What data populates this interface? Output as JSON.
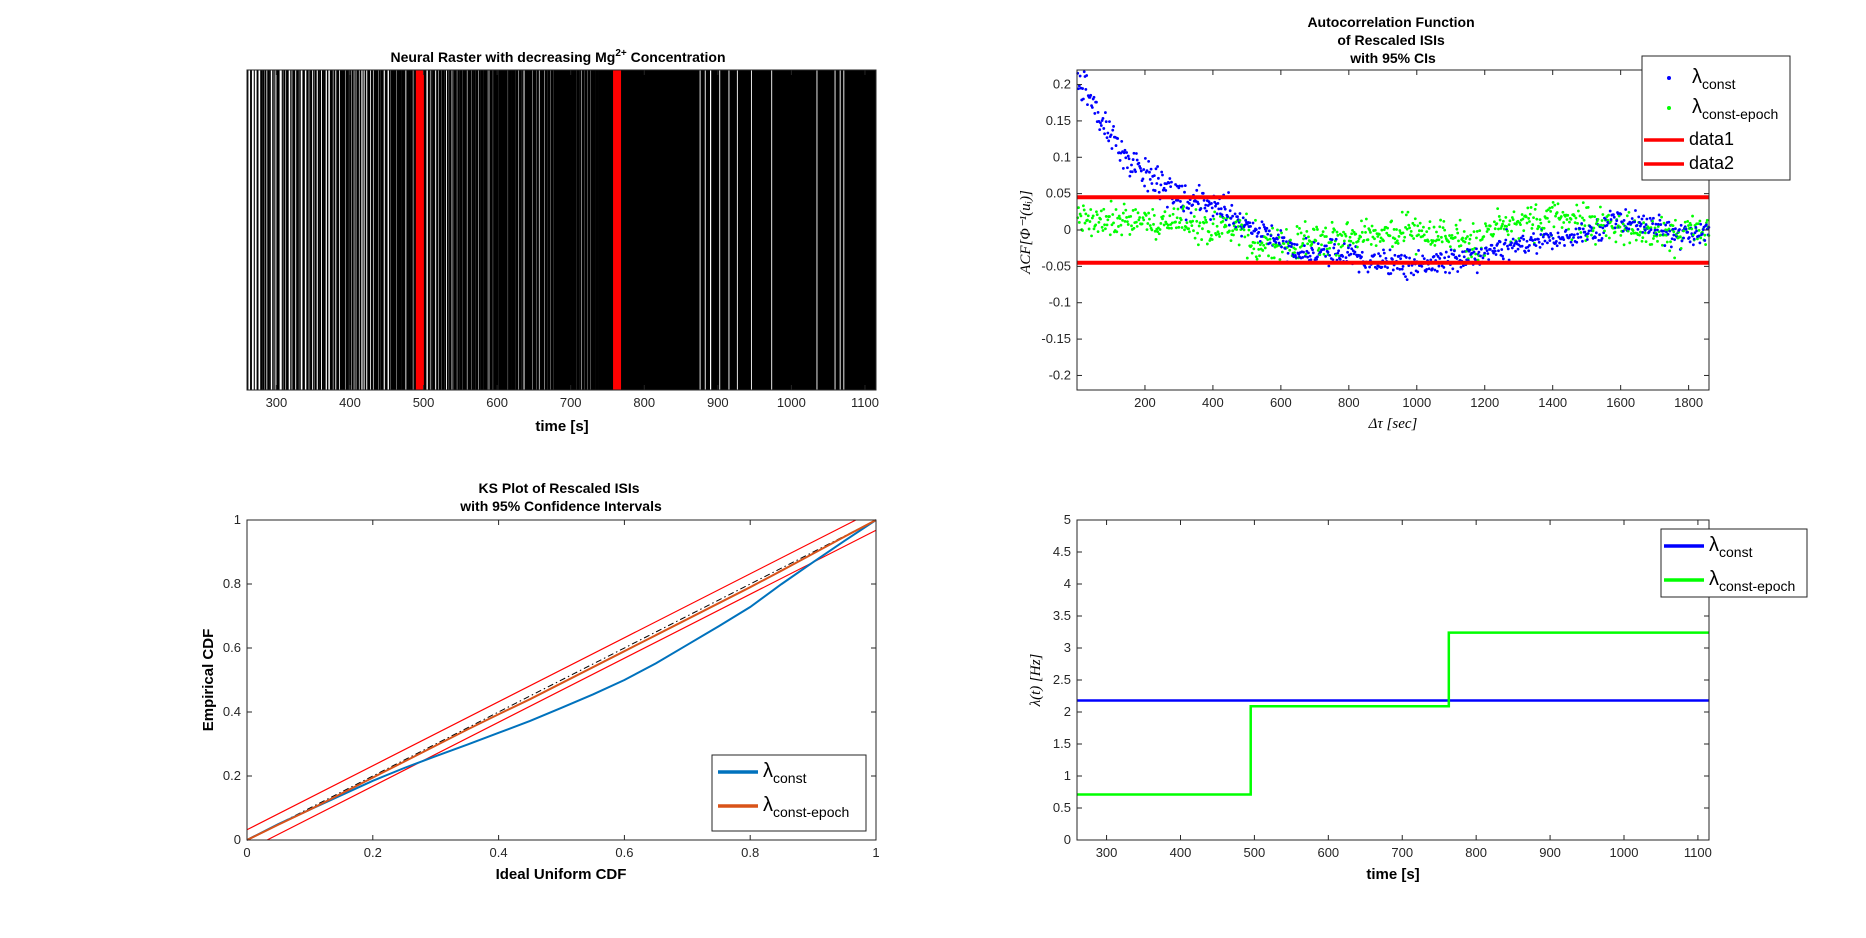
{
  "chart_data": [
    {
      "type": "raster",
      "title": "Neural Raster with decreasing Mg",
      "title_sup": "2+",
      "title_suffix": " Concentration",
      "xlabel": "time [s]",
      "xlim": [
        260,
        1115
      ],
      "xticks": [
        300,
        400,
        500,
        600,
        700,
        800,
        900,
        1000,
        1100
      ],
      "dense_region_start": 770,
      "epoch_boundaries": [
        495,
        763
      ],
      "epoch_color": "#ff0000",
      "spike_color": "#000000"
    },
    {
      "type": "scatter",
      "title_lines": [
        "Autocorrelation Function",
        "of Rescaled ISIs",
        "with 95% CIs"
      ],
      "xlabel": "Δτ [sec]",
      "ylabel": "ACF[Φ⁻¹(uᵢ)]",
      "xlim": [
        0,
        1860
      ],
      "ylim": [
        -0.22,
        0.22
      ],
      "xticks": [
        200,
        400,
        600,
        800,
        1000,
        1200,
        1400,
        1600,
        1800
      ],
      "yticks": [
        -0.2,
        -0.15,
        -0.1,
        -0.05,
        0,
        0.05,
        0.1,
        0.15,
        0.2
      ],
      "confidence_bounds": [
        0.045,
        -0.045
      ],
      "series": [
        {
          "name": "λ",
          "sub": "const",
          "color": "#0000ff",
          "kind": "scatter"
        },
        {
          "name": "λ",
          "sub": "const-epoch",
          "color": "#00ff00",
          "kind": "scatter"
        },
        {
          "name": "data1",
          "color": "#ff0000",
          "kind": "line"
        },
        {
          "name": "data2",
          "color": "#ff0000",
          "kind": "line"
        }
      ]
    },
    {
      "type": "line",
      "title_lines": [
        "KS Plot of Rescaled ISIs",
        "with 95% Confidence Intervals"
      ],
      "xlabel": "Ideal Uniform CDF",
      "ylabel": "Empirical CDF",
      "xlim": [
        0,
        1
      ],
      "ylim": [
        0,
        1
      ],
      "xticks": [
        0,
        0.2,
        0.4,
        0.6,
        0.8,
        1
      ],
      "yticks": [
        0,
        0.2,
        0.4,
        0.6,
        0.8,
        1
      ],
      "ci_halfwidth": 0.032,
      "series": [
        {
          "name": "λ",
          "sub": "const",
          "color": "#0072bd",
          "x": [
            0,
            0.05,
            0.1,
            0.15,
            0.2,
            0.25,
            0.3,
            0.35,
            0.4,
            0.45,
            0.5,
            0.55,
            0.6,
            0.65,
            0.7,
            0.75,
            0.8,
            0.85,
            0.9,
            0.95,
            1.0
          ],
          "y": [
            0,
            0.05,
            0.095,
            0.14,
            0.185,
            0.225,
            0.262,
            0.298,
            0.335,
            0.372,
            0.413,
            0.455,
            0.5,
            0.552,
            0.61,
            0.668,
            0.728,
            0.8,
            0.868,
            0.935,
            1.0
          ]
        },
        {
          "name": "λ",
          "sub": "const-epoch",
          "color": "#d95319",
          "x": [
            0,
            0.05,
            0.1,
            0.15,
            0.2,
            0.25,
            0.3,
            0.35,
            0.4,
            0.45,
            0.5,
            0.55,
            0.6,
            0.65,
            0.7,
            0.75,
            0.8,
            0.85,
            0.9,
            0.95,
            1.0
          ],
          "y": [
            0,
            0.048,
            0.095,
            0.145,
            0.195,
            0.245,
            0.295,
            0.345,
            0.393,
            0.44,
            0.49,
            0.54,
            0.59,
            0.64,
            0.69,
            0.74,
            0.79,
            0.842,
            0.895,
            0.948,
            1.0
          ]
        }
      ]
    },
    {
      "type": "line",
      "xlabel": "time [s]",
      "ylabel": "λ(t) [Hz]",
      "xlim": [
        260,
        1115
      ],
      "ylim": [
        0,
        5
      ],
      "xticks": [
        300,
        400,
        500,
        600,
        700,
        800,
        900,
        1000,
        1100
      ],
      "yticks": [
        0,
        0.5,
        1,
        1.5,
        2,
        2.5,
        3,
        3.5,
        4,
        4.5,
        5
      ],
      "series": [
        {
          "name": "λ",
          "sub": "const",
          "color": "#0000ff",
          "x": [
            260,
            1115
          ],
          "y": [
            2.18,
            2.18
          ]
        },
        {
          "name": "λ",
          "sub": "const-epoch",
          "color": "#00ff00",
          "x": [
            260,
            495,
            495,
            763,
            763,
            1115
          ],
          "y": [
            0.71,
            0.71,
            2.09,
            2.09,
            3.24,
            3.24
          ]
        }
      ]
    }
  ]
}
